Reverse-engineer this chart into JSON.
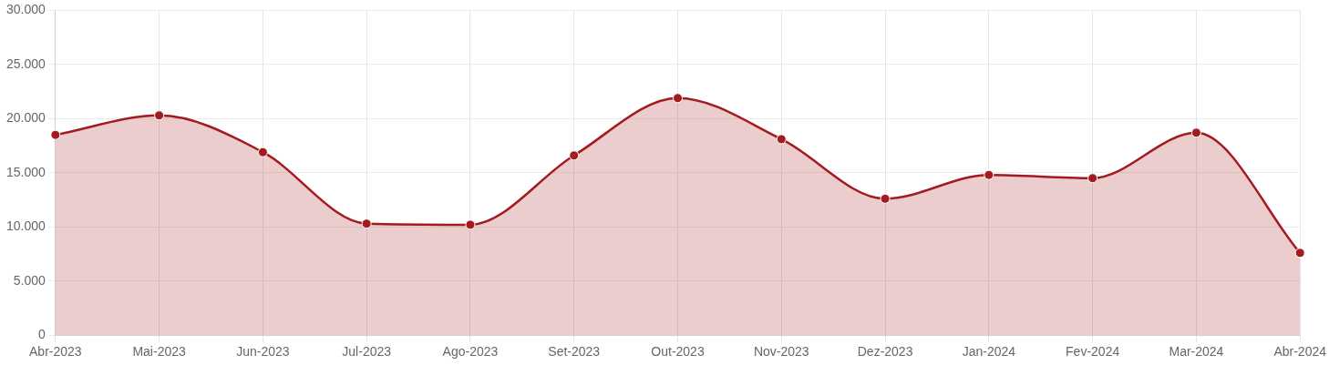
{
  "chart_data": {
    "type": "area",
    "categories": [
      "Abr-2023",
      "Mai-2023",
      "Jun-2023",
      "Jul-2023",
      "Ago-2023",
      "Set-2023",
      "Out-2023",
      "Nov-2023",
      "Dez-2023",
      "Jan-2024",
      "Fev-2024",
      "Mar-2024",
      "Abr-2024"
    ],
    "series": [
      {
        "color": "#a31a1f",
        "values": [
          18500,
          20300,
          16900,
          10300,
          10200,
          16600,
          21900,
          18100,
          12600,
          14800,
          14500,
          18700,
          7600
        ]
      }
    ],
    "ylim": [
      0,
      30000
    ],
    "yticks": [
      {
        "value": 0,
        "label": "0"
      },
      {
        "value": 5000,
        "label": "5.000"
      },
      {
        "value": 10000,
        "label": "10.000"
      },
      {
        "value": 15000,
        "label": "15.000"
      },
      {
        "value": 20000,
        "label": "20.000"
      },
      {
        "value": 25000,
        "label": "25.000"
      },
      {
        "value": 30000,
        "label": "30.000"
      }
    ],
    "grid": true,
    "legend": false,
    "marker": "circle"
  }
}
